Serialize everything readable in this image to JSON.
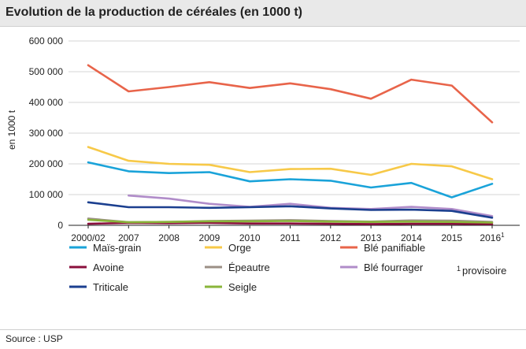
{
  "header": {
    "title": "Evolution de la production de céréales (en 1000 t)"
  },
  "footer": {
    "source": "Source : USP"
  },
  "chart_data": {
    "type": "line",
    "title": "Evolution de la production de céréales (en 1000 t)",
    "xlabel": "",
    "ylabel": "en 1000 t",
    "ylim": [
      0,
      600000
    ],
    "y_ticks": [
      0,
      100000,
      200000,
      300000,
      400000,
      500000,
      600000
    ],
    "y_tick_labels": [
      "0",
      "100 000",
      "200 000",
      "300 000",
      "400 000",
      "500 000",
      "600 000"
    ],
    "categories": [
      "2000/02",
      "2007",
      "2008",
      "2009",
      "2010",
      "2011",
      "2012",
      "2013",
      "2014",
      "2015",
      "2016"
    ],
    "category_superscripts": [
      "",
      "",
      "",
      "",
      "",
      "",
      "",
      "",
      "",
      "",
      "1"
    ],
    "grid": true,
    "legend_position": "bottom",
    "footnote": {
      "mark": "1",
      "text": "provisoire"
    },
    "series": [
      {
        "name": "Maïs-grain",
        "color": "#1aa3d9",
        "values": [
          205000,
          176000,
          170000,
          173000,
          143000,
          150000,
          145000,
          123000,
          138000,
          91000,
          135000
        ]
      },
      {
        "name": "Orge",
        "color": "#f7c948",
        "values": [
          255000,
          210000,
          200000,
          197000,
          173000,
          183000,
          184000,
          164000,
          200000,
          192000,
          150000
        ]
      },
      {
        "name": "Blé panifiable",
        "color": "#e8644a",
        "values": [
          521000,
          436000,
          450000,
          466000,
          447000,
          462000,
          443000,
          412000,
          474000,
          455000,
          335000
        ]
      },
      {
        "name": "Avoine",
        "color": "#8a0f3c",
        "values": [
          5000,
          8000,
          7000,
          8000,
          6000,
          6000,
          5000,
          4000,
          5000,
          5000,
          4000
        ]
      },
      {
        "name": "Épeautre",
        "color": "#9b8f86",
        "values": [
          22000,
          10000,
          11000,
          14000,
          15000,
          17000,
          14000,
          12000,
          16000,
          15000,
          11000
        ]
      },
      {
        "name": "Blé fourrager",
        "color": "#b08cc9",
        "values": [
          null,
          97000,
          87000,
          70000,
          60000,
          70000,
          57000,
          53000,
          60000,
          53000,
          30000
        ]
      },
      {
        "name": "Triticale",
        "color": "#1b3f8f",
        "values": [
          75000,
          59000,
          59000,
          57000,
          59000,
          62000,
          55000,
          50000,
          51000,
          47000,
          25000
        ]
      },
      {
        "name": "Seigle",
        "color": "#8ab53a",
        "values": [
          18000,
          10000,
          11000,
          13000,
          13000,
          14000,
          12000,
          11000,
          12000,
          11000,
          9000
        ]
      }
    ]
  }
}
